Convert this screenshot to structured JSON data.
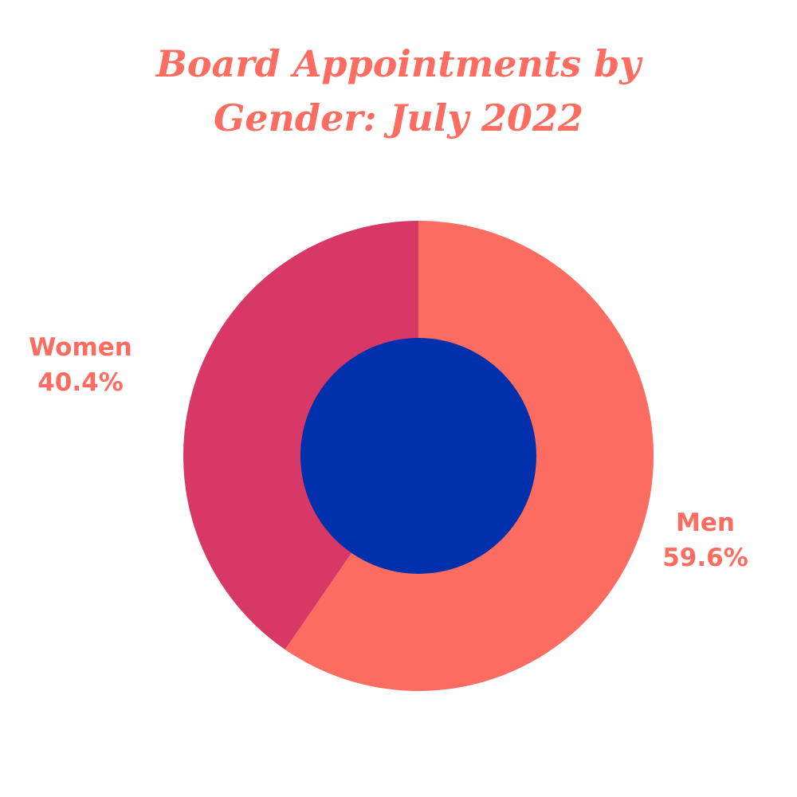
{
  "chart_data": {
    "type": "pie",
    "title": "Board Appointments by Gender: July 2022",
    "title_lines": [
      "Board Appointments by",
      "Gender: July 2022"
    ],
    "donut": true,
    "center_color": "#0030ac",
    "slices": [
      {
        "label": "Men",
        "value": 59.6,
        "value_text": "59.6%",
        "color": "#fc6c60"
      },
      {
        "label": "Women",
        "value": 40.4,
        "value_text": "40.4%",
        "color": "#d83866"
      }
    ],
    "legend": "none"
  }
}
